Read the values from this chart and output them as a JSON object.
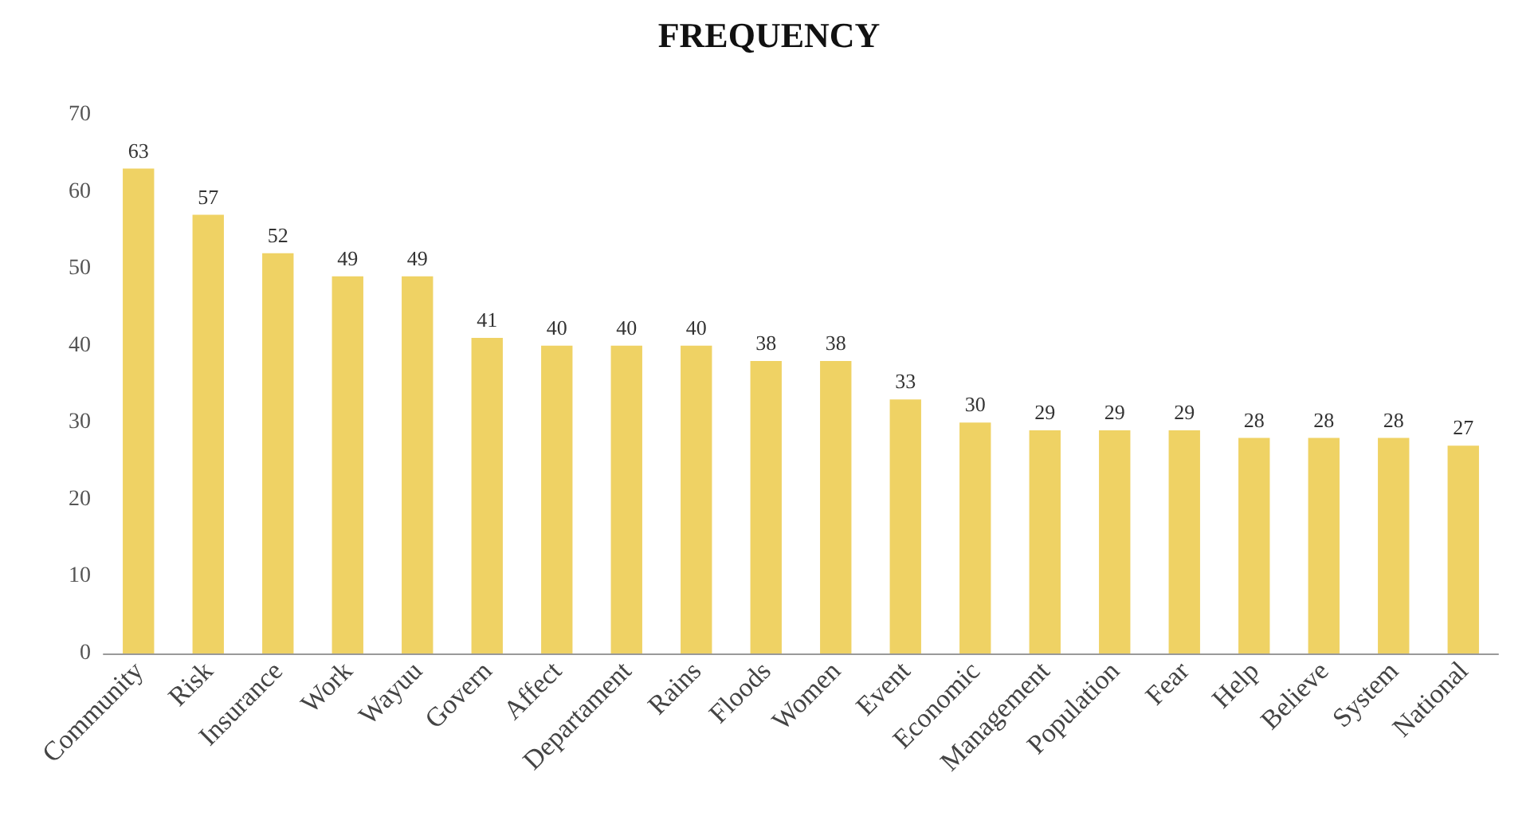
{
  "chart_data": {
    "type": "bar",
    "title": "FREQUENCY",
    "categories": [
      "Community",
      "Risk",
      "Insurance",
      "Work",
      "Wayuu",
      "Govern",
      "Affect",
      "Departament",
      "Rains",
      "Floods",
      "Women",
      "Event",
      "Economic",
      "Management",
      "Population",
      "Fear",
      "Help",
      "Believe",
      "System",
      "National"
    ],
    "values": [
      63,
      57,
      52,
      49,
      49,
      41,
      40,
      40,
      40,
      38,
      38,
      33,
      30,
      29,
      29,
      29,
      28,
      28,
      28,
      27
    ],
    "color": "#efd264",
    "ylim": [
      0,
      70
    ],
    "yticks": [
      0,
      10,
      20,
      30,
      40,
      50,
      60,
      70
    ],
    "grid": false,
    "data_labels": true
  }
}
